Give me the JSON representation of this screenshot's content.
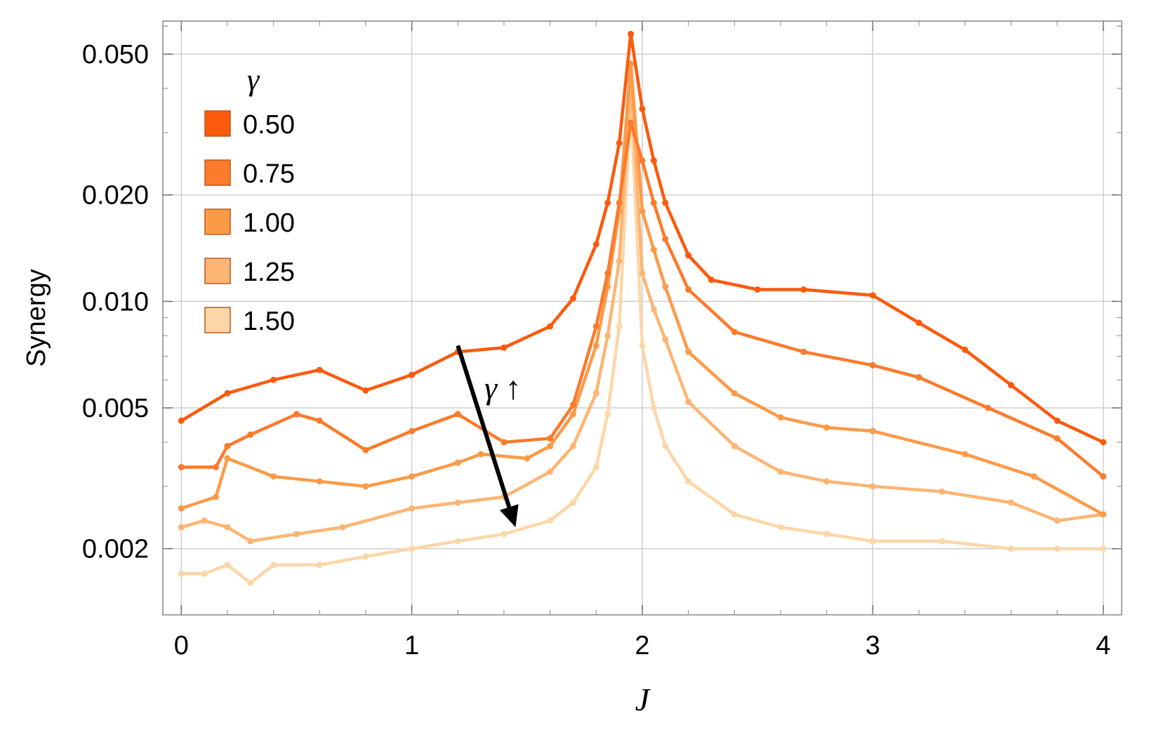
{
  "chart_data": {
    "type": "line",
    "xlabel": "J",
    "ylabel": "Synergy",
    "xlim": [
      -0.08,
      4.08
    ],
    "ylim": [
      0.0013,
      0.062
    ],
    "yscale": "log",
    "xticks": [
      0,
      1,
      2,
      3,
      4
    ],
    "xtick_labels": [
      "0",
      "1",
      "2",
      "3",
      "4"
    ],
    "yticks": [
      0.002,
      0.005,
      0.01,
      0.02,
      0.05
    ],
    "ytick_labels": [
      "0.002",
      "0.005",
      "0.010",
      "0.020",
      "0.050"
    ],
    "grid": true,
    "legend": {
      "title": "γ",
      "position": "top-left",
      "entries": [
        "0.50",
        "0.75",
        "1.00",
        "1.25",
        "1.50"
      ]
    },
    "annotation": {
      "text": "γ ↑",
      "arrow_from": [
        1.2,
        0.0075
      ],
      "arrow_to": [
        1.45,
        0.0023
      ]
    },
    "series": [
      {
        "name": "0.50",
        "color": "#fc5a0c",
        "x": [
          0.0,
          0.2,
          0.4,
          0.6,
          0.8,
          1.0,
          1.2,
          1.4,
          1.6,
          1.7,
          1.8,
          1.85,
          1.9,
          1.95,
          2.0,
          2.05,
          2.1,
          2.2,
          2.3,
          2.5,
          2.7,
          3.0,
          3.2,
          3.4,
          3.6,
          3.8,
          4.0
        ],
        "y": [
          0.0046,
          0.0055,
          0.006,
          0.0064,
          0.0056,
          0.0062,
          0.0072,
          0.0074,
          0.0085,
          0.0102,
          0.0145,
          0.019,
          0.028,
          0.057,
          0.035,
          0.025,
          0.019,
          0.0135,
          0.0115,
          0.0108,
          0.0108,
          0.0104,
          0.0087,
          0.0073,
          0.0058,
          0.0046,
          0.004
        ]
      },
      {
        "name": "0.75",
        "color": "#fc7a2c",
        "x": [
          0.0,
          0.15,
          0.2,
          0.3,
          0.5,
          0.6,
          0.8,
          1.0,
          1.2,
          1.4,
          1.6,
          1.7,
          1.8,
          1.85,
          1.9,
          1.95,
          2.0,
          2.05,
          2.1,
          2.2,
          2.4,
          2.7,
          3.0,
          3.2,
          3.5,
          3.8,
          4.0
        ],
        "y": [
          0.0034,
          0.0034,
          0.0039,
          0.0042,
          0.0048,
          0.0046,
          0.0038,
          0.0043,
          0.0048,
          0.004,
          0.0041,
          0.0051,
          0.0085,
          0.012,
          0.019,
          0.032,
          0.025,
          0.019,
          0.015,
          0.0108,
          0.0082,
          0.0072,
          0.0066,
          0.0061,
          0.005,
          0.0041,
          0.0032
        ]
      },
      {
        "name": "1.00",
        "color": "#fd9a48",
        "x": [
          0.0,
          0.15,
          0.2,
          0.4,
          0.6,
          0.8,
          1.0,
          1.2,
          1.3,
          1.5,
          1.6,
          1.7,
          1.8,
          1.85,
          1.9,
          1.95,
          2.0,
          2.05,
          2.1,
          2.2,
          2.4,
          2.6,
          2.8,
          3.0,
          3.4,
          3.7,
          4.0
        ],
        "y": [
          0.0026,
          0.0028,
          0.0036,
          0.0032,
          0.0031,
          0.003,
          0.0032,
          0.0035,
          0.0037,
          0.0036,
          0.0039,
          0.0048,
          0.0075,
          0.011,
          0.018,
          0.047,
          0.018,
          0.014,
          0.011,
          0.0072,
          0.0055,
          0.0047,
          0.0044,
          0.0043,
          0.0037,
          0.0032,
          0.0025
        ]
      },
      {
        "name": "1.25",
        "color": "#fdb574",
        "x": [
          0.0,
          0.1,
          0.2,
          0.3,
          0.5,
          0.7,
          1.0,
          1.2,
          1.4,
          1.6,
          1.7,
          1.8,
          1.85,
          1.9,
          1.95,
          2.0,
          2.05,
          2.1,
          2.2,
          2.4,
          2.6,
          2.8,
          3.0,
          3.3,
          3.6,
          3.8,
          4.0
        ],
        "y": [
          0.0023,
          0.0024,
          0.0023,
          0.0021,
          0.0022,
          0.0023,
          0.0026,
          0.0027,
          0.0028,
          0.0033,
          0.0039,
          0.0055,
          0.008,
          0.013,
          0.042,
          0.012,
          0.0095,
          0.0078,
          0.0052,
          0.0039,
          0.0033,
          0.0031,
          0.003,
          0.0029,
          0.0027,
          0.0024,
          0.0025
        ]
      },
      {
        "name": "1.50",
        "color": "#fdd6a8",
        "x": [
          0.0,
          0.1,
          0.2,
          0.3,
          0.4,
          0.6,
          0.8,
          1.0,
          1.2,
          1.4,
          1.6,
          1.7,
          1.8,
          1.85,
          1.9,
          1.95,
          2.0,
          2.05,
          2.1,
          2.2,
          2.4,
          2.6,
          2.8,
          3.0,
          3.3,
          3.6,
          3.8,
          4.0
        ],
        "y": [
          0.0017,
          0.0017,
          0.0018,
          0.0016,
          0.0018,
          0.0018,
          0.0019,
          0.002,
          0.0021,
          0.0022,
          0.0024,
          0.0027,
          0.0034,
          0.0048,
          0.0085,
          0.036,
          0.0075,
          0.005,
          0.0039,
          0.0031,
          0.0025,
          0.0023,
          0.0022,
          0.0021,
          0.0021,
          0.002,
          0.002,
          0.002
        ]
      }
    ]
  }
}
